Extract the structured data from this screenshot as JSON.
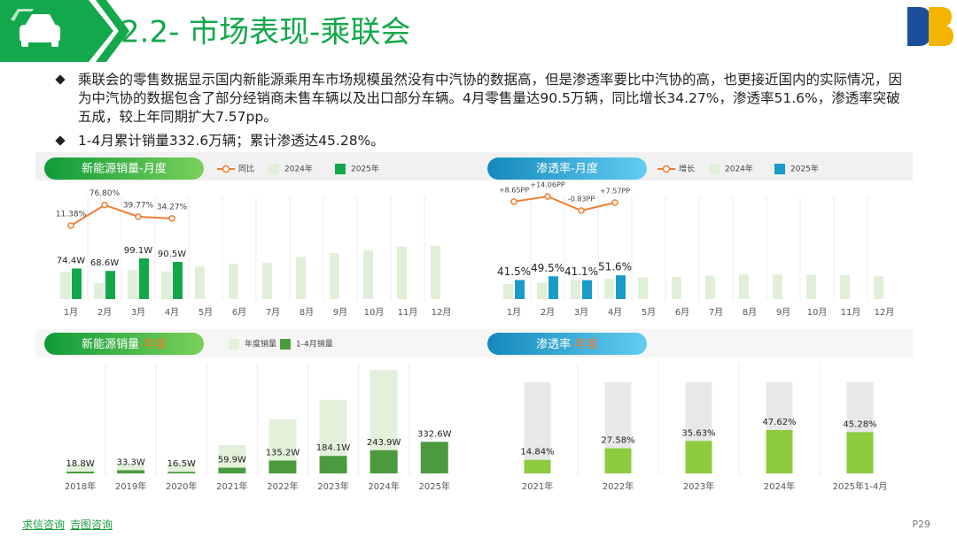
{
  "header": {
    "title": "2.2- 市场表现-乘联会"
  },
  "bullets": [
    "乘联会的零售数据显示国内新能源乘用车市场规模虽然没有中汽协的数据高，但是渗透率要比中汽协的高，也更接近国内的实际情况，因为中汽协的数据包含了部分经销商未售车辆以及出口部分车辆。4月零售量达90.5万辆，同比增长34.27%，渗透率51.6%，渗透率突破五成，较上年同期扩大7.57pp。",
    "1-4月累计销量332.6万辆；累计渗透达45.28%。"
  ],
  "footer": {
    "links": [
      "求信咨询",
      "吉图咨询"
    ],
    "page": "P29"
  },
  "chart_data": [
    {
      "type": "bar",
      "title": "新能源销量-月度",
      "categories": [
        "1月",
        "2月",
        "3月",
        "4月",
        "5月",
        "6月",
        "7月",
        "8月",
        "9月",
        "10月",
        "11月",
        "12月"
      ],
      "ylim": [
        0,
        140
      ],
      "y2lim": [
        0,
        90
      ],
      "series": [
        {
          "name": "同比",
          "type": "line",
          "axis": "y2",
          "color": "#ee7d31",
          "values": [
            11.38,
            76.8,
            39.77,
            34.27,
            null,
            null,
            null,
            null,
            null,
            null,
            null,
            null
          ],
          "value_labels": [
            "11.38%",
            "76.80%",
            "39.77%",
            "34.27%",
            null,
            null,
            null,
            null,
            null,
            null,
            null,
            null
          ]
        },
        {
          "name": "2024年",
          "color": "#e1efd9",
          "values": [
            66.8,
            38.8,
            70.9,
            67.4,
            80,
            86,
            88,
            103,
            112,
            119,
            128,
            130
          ]
        },
        {
          "name": "2025年",
          "color": "#12a84a",
          "values": [
            74.4,
            68.6,
            99.1,
            90.5,
            null,
            null,
            null,
            null,
            null,
            null,
            null,
            null
          ],
          "value_labels": [
            "74.4W",
            "68.6W",
            "99.1W",
            "90.5W",
            null,
            null,
            null,
            null,
            null,
            null,
            null,
            null
          ]
        }
      ]
    },
    {
      "type": "bar",
      "title": "渗透率-月度",
      "categories": [
        "1月",
        "2月",
        "3月",
        "4月",
        "5月",
        "6月",
        "7月",
        "8月",
        "9月",
        "10月",
        "11月",
        "12月"
      ],
      "ylim": [
        0,
        100
      ],
      "y2lim": [
        -5,
        20
      ],
      "series": [
        {
          "name": "增长",
          "type": "line",
          "axis": "y2",
          "color": "#ee7d31",
          "values": [
            8.65,
            14.06,
            -0.83,
            7.57,
            null,
            null,
            null,
            null,
            null,
            null,
            null,
            null
          ],
          "value_labels": [
            "+8.65PP",
            "+14.06PP",
            "-0.83PP",
            "+7.57PP",
            null,
            null,
            null,
            null,
            null,
            null,
            null,
            null
          ]
        },
        {
          "name": "2024年",
          "color": "#e1efd9",
          "values": [
            32.9,
            35.4,
            41.9,
            44.0,
            47,
            48,
            51,
            53.9,
            53.3,
            52.9,
            52.3,
            49.5
          ]
        },
        {
          "name": "2025年",
          "color": "#1a9bc8",
          "values": [
            41.5,
            49.5,
            41.1,
            51.6,
            null,
            null,
            null,
            null,
            null,
            null,
            null,
            null
          ],
          "value_labels": [
            "41.5%",
            "49.5%",
            "41.1%",
            "51.6%",
            null,
            null,
            null,
            null,
            null,
            null,
            null,
            null
          ]
        }
      ]
    },
    {
      "type": "bar",
      "title": [
        "新能源销量",
        "-年度"
      ],
      "categories": [
        "2018年",
        "2019年",
        "2020年",
        "2021年",
        "2022年",
        "2023年",
        "2024年",
        "2025年"
      ],
      "ylim": [
        0,
        1150
      ],
      "series": [
        {
          "name": "年度销量",
          "color": "#e3f0da",
          "values": [
            101,
            106,
            111,
            299,
            570,
            775,
            1090,
            null
          ]
        },
        {
          "name": "1-4月销量",
          "color": "#4c9a3e",
          "values": [
            18.8,
            33.3,
            16.5,
            59.9,
            135.2,
            184.1,
            243.9,
            332.6
          ],
          "value_labels": [
            "18.8W",
            "33.3W",
            "16.5W",
            "59.9W",
            "135.2W",
            "184.1W",
            "243.9W",
            "332.6W"
          ]
        }
      ]
    },
    {
      "type": "bar",
      "title": [
        "渗透率",
        "-年度"
      ],
      "categories": [
        "2021年",
        "2022年",
        "2023年",
        "2024年",
        "2025年1-4月"
      ],
      "ylim": [
        0,
        100
      ],
      "color": "#8dcb3f",
      "values": [
        14.84,
        27.58,
        35.63,
        47.62,
        45.28
      ],
      "value_labels": [
        "14.84%",
        "27.58%",
        "35.63%",
        "47.62%",
        "45.28%"
      ]
    }
  ]
}
